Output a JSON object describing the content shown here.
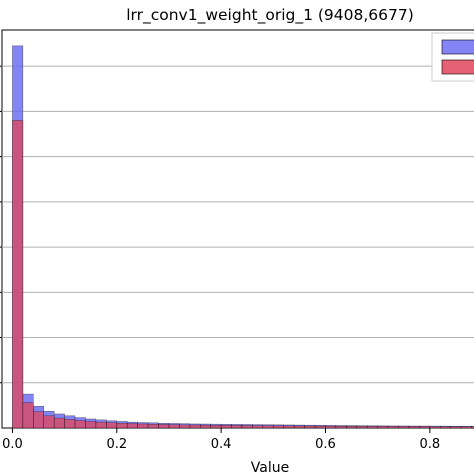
{
  "chart_data": {
    "type": "bar",
    "title": "lrr_conv1_weight_orig_1 (9408,6677)",
    "xlabel": "Value",
    "ylabel": "",
    "xlim": [
      -0.02,
      0.9
    ],
    "ylim": [
      0,
      8800
    ],
    "x_ticks": [
      0.0,
      0.2,
      0.4,
      0.6,
      0.8
    ],
    "x_tick_labels": [
      "0.0",
      "0.2",
      "0.4",
      "0.6",
      "0.8"
    ],
    "y_gridlines": [
      1000,
      2000,
      3000,
      4000,
      5000,
      6000,
      7000,
      8000
    ],
    "grid": "horizontal",
    "legend_position": "top-right",
    "bin_width": 0.02,
    "series": [
      {
        "color": "#6f6ff2",
        "values": [
          8450,
          750,
          480,
          370,
          310,
          270,
          230,
          200,
          180,
          160,
          145,
          130,
          120,
          115,
          105,
          100,
          95,
          90,
          88,
          85,
          82,
          80,
          78,
          75,
          72,
          70,
          68,
          65,
          63,
          60,
          58,
          56,
          54,
          52,
          50,
          48,
          46,
          45,
          44,
          43,
          42,
          41,
          40,
          40,
          39
        ]
      },
      {
        "color": "#e0455a",
        "values": [
          6800,
          560,
          360,
          270,
          220,
          190,
          165,
          145,
          130,
          118,
          106,
          98,
          90,
          84,
          78,
          73,
          69,
          66,
          63,
          60,
          58,
          56,
          54,
          52,
          50,
          48,
          47,
          45,
          44,
          43,
          41,
          40,
          39,
          38,
          37,
          36,
          35,
          34,
          33,
          32,
          31,
          31,
          30,
          30,
          29
        ]
      }
    ]
  }
}
